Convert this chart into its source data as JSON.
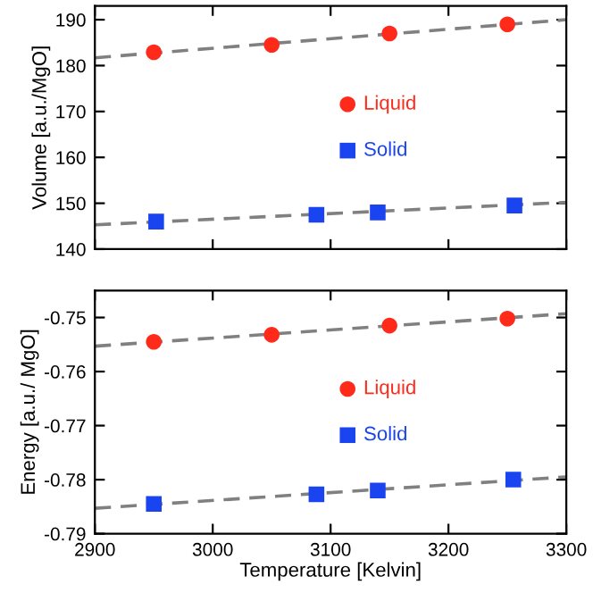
{
  "chart_data": [
    {
      "type": "scatter",
      "ylabel": "Volume [a.u./MgO]",
      "xlim": [
        2900,
        3300
      ],
      "ylim": [
        140,
        193
      ],
      "xticks": [
        2900,
        3000,
        3100,
        3200,
        3300
      ],
      "yticks": [
        140,
        150,
        160,
        170,
        180,
        190
      ],
      "tick_labels": "y",
      "legend": "right",
      "grid": false,
      "series": [
        {
          "name": "Liquid",
          "color": "#ff2a1a",
          "marker": "circle",
          "x": [
            2950,
            3050,
            3150,
            3250
          ],
          "values": [
            182.9,
            184.5,
            187,
            189
          ]
        },
        {
          "name": "Solid",
          "color": "#1a44f0",
          "marker": "square",
          "x": [
            2952,
            3088,
            3140,
            3256
          ],
          "values": [
            146,
            147.5,
            148,
            149.5
          ]
        },
        {
          "type": "line",
          "color": "#808080",
          "line_style": "dashed",
          "x": [
            2900,
            3300
          ],
          "values": [
            181.7,
            190
          ]
        },
        {
          "type": "line",
          "color": "#808080",
          "line_style": "dashed",
          "x": [
            2900,
            3300
          ],
          "values": [
            145.3,
            150.2
          ]
        }
      ]
    },
    {
      "type": "scatter",
      "xlabel": "Temperature [Kelvin]",
      "ylabel": "Energy [a.u./ MgO]",
      "xlim": [
        2900,
        3300
      ],
      "ylim": [
        -0.79,
        -0.745
      ],
      "xticks": [
        2900,
        3000,
        3100,
        3200,
        3300
      ],
      "yticks": [
        -0.79,
        -0.78,
        -0.77,
        -0.76,
        -0.75
      ],
      "legend": "right",
      "grid": false,
      "series": [
        {
          "name": "Liquid",
          "color": "#ff2a1a",
          "marker": "circle",
          "x": [
            2950,
            3050,
            3150,
            3250
          ],
          "values": [
            -0.7545,
            -0.7532,
            -0.7515,
            -0.7502
          ]
        },
        {
          "name": "Solid",
          "color": "#1a44f0",
          "marker": "square",
          "x": [
            2950,
            3088,
            3140,
            3255
          ],
          "values": [
            -0.7845,
            -0.7827,
            -0.782,
            -0.78
          ]
        },
        {
          "type": "line",
          "color": "#808080",
          "line_style": "dashed",
          "x": [
            2900,
            3300
          ],
          "values": [
            -0.7553,
            -0.7493
          ]
        },
        {
          "type": "line",
          "color": "#808080",
          "line_style": "dashed",
          "x": [
            2900,
            3300
          ],
          "values": [
            -0.7853,
            -0.7795
          ]
        }
      ]
    }
  ]
}
